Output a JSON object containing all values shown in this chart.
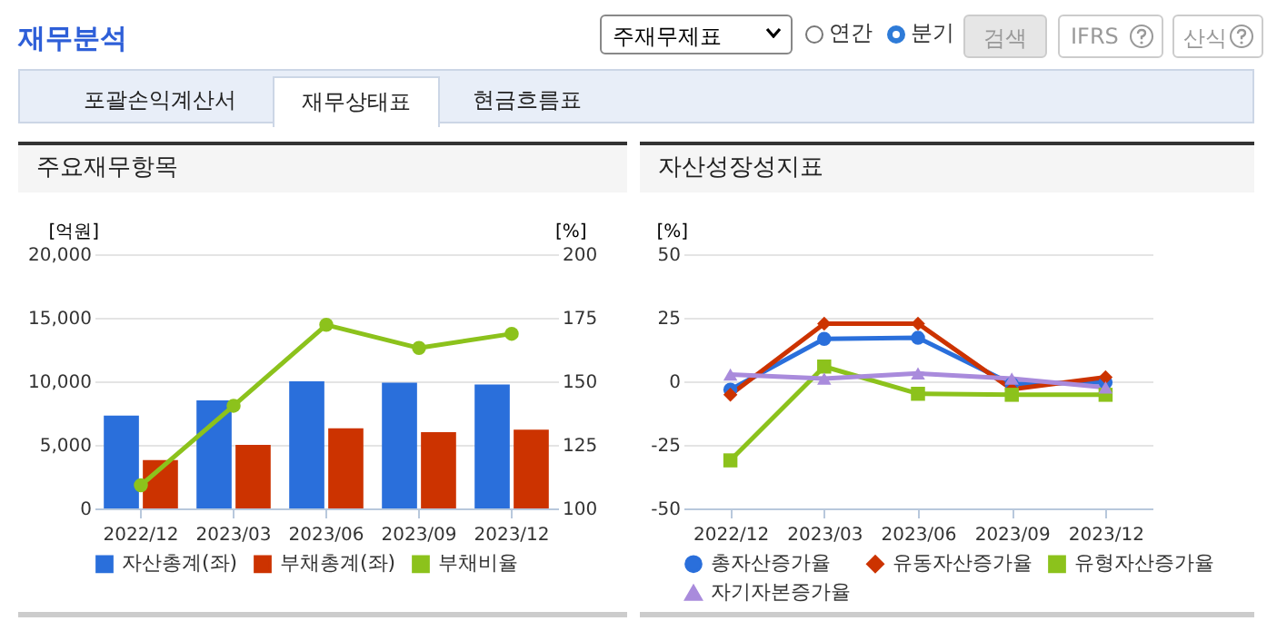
{
  "chart_data": [
    {
      "type": "other",
      "title": "재무분석",
      "annotations": [
        "주재무제표",
        "연간",
        "분기",
        "검색",
        "IFRS",
        "산식",
        "포괄손익계산서",
        "재무상태표",
        "현금흐름표"
      ]
    },
    {
      "type": "bar",
      "title": "주요재무항목",
      "categories": [
        "2022/12",
        "2023/03",
        "2023/06",
        "2023/09",
        "2023/12"
      ],
      "ylabel": "[억원]",
      "y2label": "[%]",
      "ylim": [
        0,
        20000
      ],
      "yticks": [
        0,
        {
          "value": 5000,
          "label": "5,000"
        },
        {
          "value": 10000,
          "label": "10,000"
        },
        {
          "value": 15000,
          "label": "15,000"
        },
        {
          "value": 20000,
          "label": "20,000"
        }
      ],
      "y2lim": [
        100,
        200
      ],
      "y2ticks": [
        100,
        125,
        150,
        175,
        200
      ],
      "grid": "y",
      "legend": "bottom",
      "marker": "circle",
      "series": [
        {
          "name": "자산총계(좌)",
          "color": "#2a6fdb",
          "values": [
            7300,
            8500,
            10000,
            9900,
            9750
          ]
        },
        {
          "name": "부채총계(좌)",
          "color": "#cc3300",
          "values": [
            3800,
            5000,
            6300,
            6000,
            6200
          ]
        },
        {
          "name": "부채비율",
          "type": "line",
          "axis": "y2",
          "color": "#8cc21c",
          "values": [
            109.1,
            140.4,
            172.2,
            163.1,
            168.7
          ]
        }
      ]
    },
    {
      "type": "line",
      "title": "자산성장성지표",
      "categories": [
        "2022/12",
        "2023/03",
        "2023/06",
        "2023/09",
        "2023/12"
      ],
      "ylabel": "[%]",
      "ylim": [
        -50,
        50
      ],
      "yticks": [
        -50,
        -25,
        0,
        25,
        50
      ],
      "grid": "y",
      "legend": "bottom",
      "series": [
        {
          "name": "총자산증가율",
          "color": "#2a6fdb",
          "marker": "circle",
          "values": [
            -3.3,
            16.7,
            17.1,
            -1.1,
            -0.4
          ]
        },
        {
          "name": "유동자산증가율",
          "color": "#cc3300",
          "marker": "diamond",
          "values": [
            -5.3,
            22.7,
            22.7,
            -3.1,
            1.6
          ]
        },
        {
          "name": "유형자산증가율",
          "color": "#8cc21c",
          "marker": "square",
          "values": [
            -31.1,
            5.8,
            -4.9,
            -5.3,
            -5.3
          ]
        },
        {
          "name": "자기자본증가율",
          "color": "#a98bdc",
          "marker": "triangle",
          "values": [
            2.7,
            1.1,
            3.1,
            1.1,
            -2.4
          ]
        }
      ]
    }
  ]
}
